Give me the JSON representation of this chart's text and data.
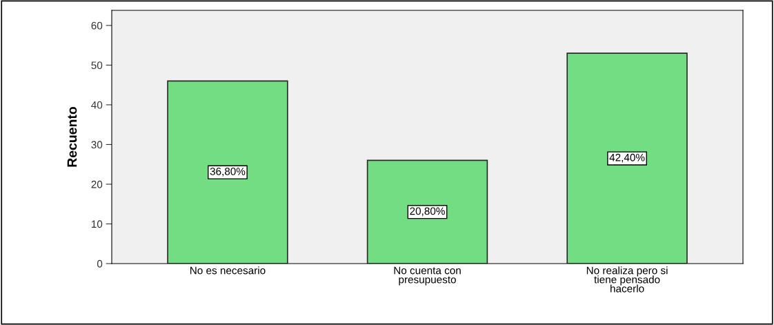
{
  "chart_data": {
    "type": "bar",
    "ylabel": "Recuento",
    "categories": [
      "No es necesario",
      "No cuenta con\npresupuesto",
      "No realiza pero si\ntiene pensado\nhacerlo"
    ],
    "values": [
      46,
      26,
      53
    ],
    "annotations": [
      "36,80%",
      "20,80%",
      "42,40%"
    ],
    "color": "#72dd82",
    "ylim": [
      0,
      63.8
    ],
    "yticks": [
      0,
      10,
      20,
      30,
      40,
      50,
      60
    ],
    "grid": false,
    "legend": false
  }
}
